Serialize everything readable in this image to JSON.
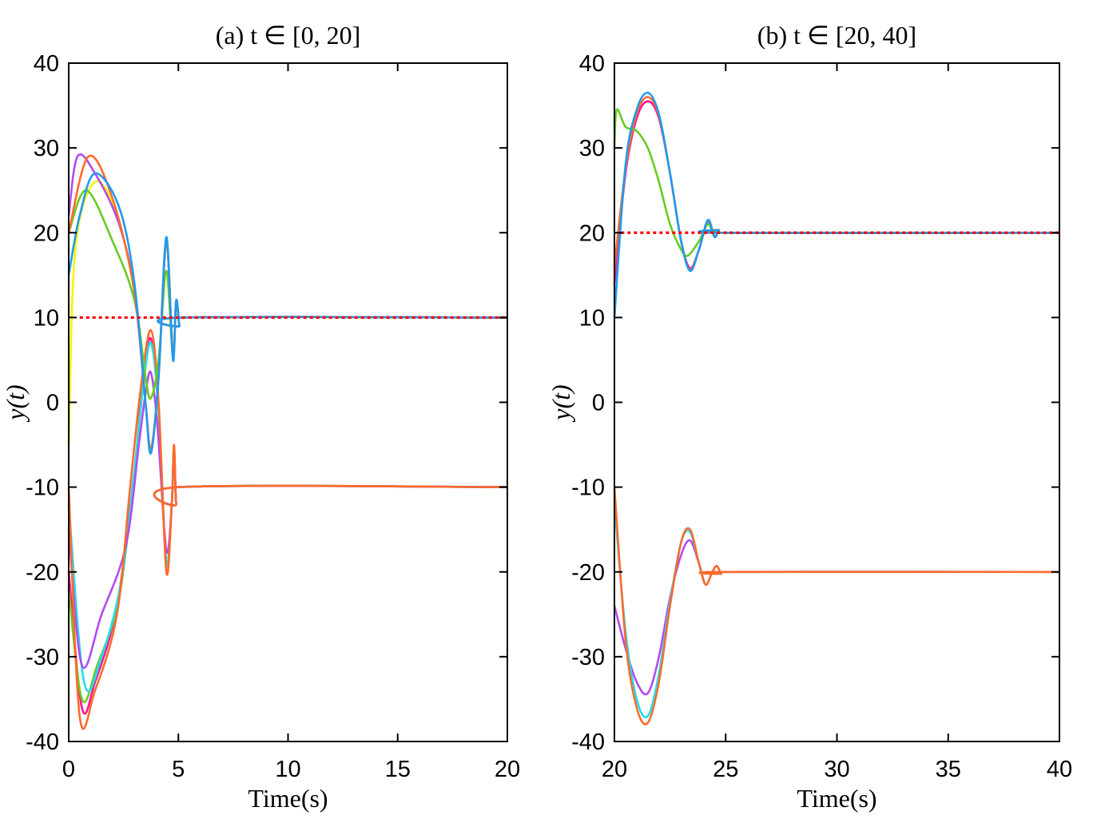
{
  "chart_data": [
    {
      "type": "line",
      "title": "(a) t ∈ [0, 20]",
      "xlabel": "Time(s)",
      "ylabel": "y(t)",
      "xlim": [
        0,
        20
      ],
      "ylim": [
        -40,
        40
      ],
      "xticks": [
        "0",
        "5",
        "10",
        "15",
        "20"
      ],
      "yticks": [
        "40",
        "30",
        "20",
        "10",
        "0",
        "-10",
        "-20",
        "-30",
        "-40"
      ],
      "grid": false,
      "reference": {
        "y": 10,
        "x": [
          0.5,
          20
        ],
        "color": "#FF0000",
        "style": "dotted"
      },
      "series": [
        {
          "color": "#FF1493",
          "points": [
            [
              0,
              -20
            ],
            [
              0.6,
              -36
            ],
            [
              1.2,
              -33
            ],
            [
              2.2,
              -24
            ],
            [
              3,
              -8
            ],
            [
              3.4,
              3
            ],
            [
              3.75,
              7.5
            ],
            [
              4.1,
              -1
            ],
            [
              4.45,
              -19
            ],
            [
              4.7,
              -12
            ],
            [
              4.8,
              -5.5
            ],
            [
              4.9,
              -12
            ],
            [
              5.05,
              -10
            ],
            [
              20,
              -10
            ]
          ]
        },
        {
          "color": "#66CC22",
          "points": [
            [
              0,
              -22
            ],
            [
              0.6,
              -35
            ],
            [
              1.3,
              -31
            ],
            [
              2.3,
              -23
            ],
            [
              3,
              -8
            ],
            [
              3.4,
              2
            ],
            [
              3.75,
              7
            ],
            [
              4.1,
              -1
            ],
            [
              4.45,
              -19
            ],
            [
              4.7,
              -12
            ],
            [
              4.8,
              -5.5
            ],
            [
              4.9,
              -12
            ],
            [
              5.05,
              -10
            ],
            [
              20,
              -10
            ]
          ]
        },
        {
          "color": "#22DDEE",
          "points": [
            [
              0,
              -12
            ],
            [
              0.7,
              -33
            ],
            [
              1.5,
              -30
            ],
            [
              2.4,
              -21
            ],
            [
              3.0,
              -8
            ],
            [
              3.4,
              2
            ],
            [
              3.75,
              7
            ],
            [
              4.1,
              -1
            ],
            [
              4.45,
              -19
            ],
            [
              4.7,
              -12
            ],
            [
              4.8,
              -5.5
            ],
            [
              4.9,
              -12
            ],
            [
              5.05,
              -10
            ],
            [
              20,
              -10
            ]
          ]
        },
        {
          "color": "#B04CF0",
          "points": [
            [
              0,
              -15
            ],
            [
              0.6,
              -31
            ],
            [
              1.5,
              -25
            ],
            [
              2.6,
              -17
            ],
            [
              3.2,
              -5
            ],
            [
              3.5,
              1
            ],
            [
              3.75,
              3.5
            ],
            [
              4.05,
              -3
            ],
            [
              4.45,
              -17.5
            ],
            [
              4.7,
              -12
            ],
            [
              4.8,
              -5.5
            ],
            [
              4.9,
              -12
            ],
            [
              5.05,
              -10
            ],
            [
              20,
              -10
            ]
          ]
        },
        {
          "color": "#FF6A2A",
          "points": [
            [
              0,
              -10
            ],
            [
              0.5,
              -37
            ],
            [
              1.2,
              -34
            ],
            [
              2.2,
              -25
            ],
            [
              2.8,
              -10
            ],
            [
              3.3,
              2
            ],
            [
              3.75,
              8.5
            ],
            [
              4.1,
              0
            ],
            [
              4.45,
              -20
            ],
            [
              4.7,
              -12
            ],
            [
              4.8,
              -5
            ],
            [
              4.9,
              -12
            ],
            [
              5.05,
              -10
            ],
            [
              20,
              -10
            ]
          ]
        },
        {
          "color": "#F5F500",
          "points": [
            [
              0,
              -5
            ],
            [
              0.3,
              18
            ],
            [
              1.2,
              26
            ],
            [
              2.2,
              22
            ],
            [
              3,
              13
            ],
            [
              3.5,
              3
            ],
            [
              3.75,
              0.5
            ],
            [
              4.1,
              5
            ],
            [
              4.45,
              15.5
            ],
            [
              4.75,
              5.5
            ],
            [
              4.9,
              12
            ],
            [
              5.05,
              9
            ],
            [
              5.2,
              10
            ],
            [
              20,
              10
            ]
          ]
        },
        {
          "color": "#66CC22",
          "points": [
            [
              0,
              20
            ],
            [
              0.8,
              25
            ],
            [
              2,
              19
            ],
            [
              3,
              12
            ],
            [
              3.5,
              3
            ],
            [
              3.75,
              0.5
            ],
            [
              4.1,
              5
            ],
            [
              4.45,
              15.5
            ],
            [
              4.75,
              5.5
            ],
            [
              4.9,
              12
            ],
            [
              5.05,
              9
            ],
            [
              5.2,
              10
            ],
            [
              20,
              10
            ]
          ]
        },
        {
          "color": "#B04CF0",
          "points": [
            [
              0,
              22
            ],
            [
              0.4,
              29
            ],
            [
              1.2,
              27
            ],
            [
              2.3,
              21
            ],
            [
              3,
              13
            ],
            [
              3.5,
              0
            ],
            [
              3.75,
              -5.5
            ],
            [
              4.1,
              3
            ],
            [
              4.45,
              19
            ],
            [
              4.75,
              5.5
            ],
            [
              4.9,
              12
            ],
            [
              5.05,
              9
            ],
            [
              5.2,
              10
            ],
            [
              20,
              10
            ]
          ]
        },
        {
          "color": "#FF6A2A",
          "points": [
            [
              0,
              20
            ],
            [
              0.9,
              29
            ],
            [
              2,
              24
            ],
            [
              3,
              13
            ],
            [
              3.5,
              0
            ],
            [
              3.75,
              -5.5
            ],
            [
              4.1,
              3
            ],
            [
              4.45,
              19
            ],
            [
              4.75,
              5.5
            ],
            [
              4.9,
              12
            ],
            [
              5.05,
              9
            ],
            [
              5.2,
              10
            ],
            [
              20,
              10
            ]
          ]
        },
        {
          "color": "#1E9BF0",
          "points": [
            [
              0,
              15
            ],
            [
              0.5,
              22
            ],
            [
              1.2,
              27
            ],
            [
              2.3,
              23
            ],
            [
              3,
              14
            ],
            [
              3.5,
              0
            ],
            [
              3.75,
              -6
            ],
            [
              4.1,
              3
            ],
            [
              4.45,
              19.5
            ],
            [
              4.75,
              5
            ],
            [
              4.9,
              12
            ],
            [
              5.05,
              9
            ],
            [
              5.2,
              10
            ],
            [
              20,
              10
            ]
          ]
        }
      ]
    },
    {
      "type": "line",
      "title": "(b) t ∈ [20, 40]",
      "xlabel": "Time(s)",
      "ylabel": "y(t)",
      "xlim": [
        20,
        40
      ],
      "ylim": [
        -40,
        40
      ],
      "xticks": [
        "20",
        "25",
        "30",
        "35",
        "40"
      ],
      "yticks": [
        "40",
        "30",
        "20",
        "10",
        "0",
        "-10",
        "-20",
        "-30",
        "-40"
      ],
      "grid": false,
      "reference": {
        "y": 20,
        "x": [
          20.3,
          40
        ],
        "color": "#FF0000",
        "style": "dotted"
      },
      "series": [
        {
          "color": "#B04CF0",
          "points": [
            [
              20,
              -24
            ],
            [
              20.5,
              -29
            ],
            [
              21,
              -33
            ],
            [
              21.5,
              -34.3
            ],
            [
              22,
              -30
            ],
            [
              22.5,
              -23
            ],
            [
              23,
              -18
            ],
            [
              23.4,
              -16.3
            ],
            [
              23.8,
              -19
            ],
            [
              24.1,
              -21.5
            ],
            [
              24.4,
              -20
            ],
            [
              24.6,
              -19.3
            ],
            [
              24.8,
              -20.2
            ],
            [
              25,
              -20
            ],
            [
              40,
              -20
            ]
          ]
        },
        {
          "color": "#22DDEE",
          "points": [
            [
              20,
              -12
            ],
            [
              20.5,
              -27
            ],
            [
              21,
              -35
            ],
            [
              21.5,
              -37
            ],
            [
              22,
              -32
            ],
            [
              22.5,
              -23.5
            ],
            [
              23,
              -16.5
            ],
            [
              23.4,
              -15.3
            ],
            [
              23.8,
              -19
            ],
            [
              24.1,
              -21.5
            ],
            [
              24.4,
              -20
            ],
            [
              24.6,
              -19.3
            ],
            [
              24.8,
              -20.2
            ],
            [
              25,
              -20
            ],
            [
              40,
              -20
            ]
          ]
        },
        {
          "color": "#FF6A2A",
          "points": [
            [
              20,
              -10
            ],
            [
              20.5,
              -28
            ],
            [
              21,
              -36
            ],
            [
              21.5,
              -37.8
            ],
            [
              22,
              -33
            ],
            [
              22.5,
              -24
            ],
            [
              23,
              -16.5
            ],
            [
              23.4,
              -15
            ],
            [
              23.8,
              -19
            ],
            [
              24.1,
              -21.5
            ],
            [
              24.4,
              -20
            ],
            [
              24.6,
              -19.3
            ],
            [
              24.8,
              -20.2
            ],
            [
              25,
              -20
            ],
            [
              40,
              -20
            ]
          ]
        },
        {
          "color": "#FF1493",
          "points": [
            [
              20,
              14
            ],
            [
              20.5,
              27
            ],
            [
              21,
              33.5
            ],
            [
              21.5,
              35.5
            ],
            [
              22,
              33.5
            ],
            [
              22.5,
              27
            ],
            [
              23,
              19
            ],
            [
              23.4,
              15.8
            ],
            [
              23.8,
              18
            ],
            [
              24.2,
              21.3
            ],
            [
              24.5,
              19.5
            ],
            [
              24.7,
              20.3
            ],
            [
              25,
              20
            ],
            [
              40,
              20
            ]
          ]
        },
        {
          "color": "#FF6A2A",
          "points": [
            [
              20,
              16
            ],
            [
              20.5,
              27.5
            ],
            [
              21,
              34
            ],
            [
              21.5,
              36
            ],
            [
              22,
              33.8
            ],
            [
              22.5,
              27
            ],
            [
              23,
              19
            ],
            [
              23.4,
              15.6
            ],
            [
              23.8,
              18
            ],
            [
              24.2,
              21.4
            ],
            [
              24.5,
              19.5
            ],
            [
              24.7,
              20.3
            ],
            [
              25,
              20
            ],
            [
              40,
              20
            ]
          ]
        },
        {
          "color": "#66CC22",
          "points": [
            [
              20,
              30
            ],
            [
              20.1,
              34.5
            ],
            [
              20.5,
              32.5
            ],
            [
              21,
              32
            ],
            [
              21.5,
              30
            ],
            [
              22,
              26
            ],
            [
              22.5,
              21
            ],
            [
              23,
              18
            ],
            [
              23.3,
              17.3
            ],
            [
              23.8,
              19
            ],
            [
              24.2,
              21
            ],
            [
              24.5,
              19.6
            ],
            [
              24.7,
              20.2
            ],
            [
              25,
              20
            ],
            [
              40,
              20
            ]
          ]
        },
        {
          "color": "#1E9BF0",
          "points": [
            [
              20,
              10
            ],
            [
              20.5,
              28
            ],
            [
              21,
              34.5
            ],
            [
              21.5,
              36.5
            ],
            [
              22,
              34
            ],
            [
              22.5,
              27
            ],
            [
              23,
              19
            ],
            [
              23.4,
              15.5
            ],
            [
              23.8,
              18
            ],
            [
              24.2,
              21.5
            ],
            [
              24.5,
              19.5
            ],
            [
              24.7,
              20.3
            ],
            [
              25,
              20
            ],
            [
              40,
              20
            ]
          ]
        }
      ]
    }
  ]
}
